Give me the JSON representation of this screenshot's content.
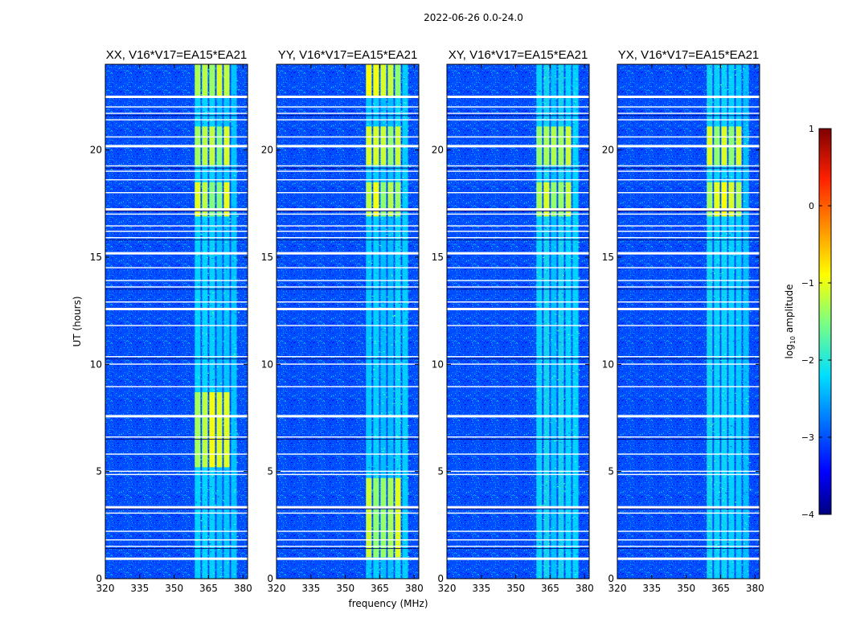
{
  "figure_title": "2022-06-26 0.0-24.0",
  "chart_data": {
    "type": "heatmap",
    "xlabel": "frequency (MHz)",
    "ylabel": "UT (hours)",
    "xlim": [
      320,
      382
    ],
    "ylim": [
      0,
      24
    ],
    "xticks": [
      320,
      335,
      350,
      365,
      380
    ],
    "yticks": [
      0,
      5,
      10,
      15,
      20
    ],
    "panels": [
      {
        "title": "XX, V16*V17=EA15*EA21",
        "rfi_band_mhz": [
          359,
          378
        ],
        "rfi_peak_intervals_hours": [
          [
            5.2,
            8.7
          ],
          [
            16.9,
            18.5
          ],
          [
            19.3,
            21.1
          ],
          [
            22.5,
            24.0
          ]
        ]
      },
      {
        "title": "YY, V16*V17=EA15*EA21",
        "rfi_band_mhz": [
          359,
          378
        ],
        "rfi_peak_intervals_hours": [
          [
            1.0,
            4.7
          ],
          [
            16.9,
            18.5
          ],
          [
            19.3,
            21.1
          ],
          [
            22.5,
            24.0
          ]
        ]
      },
      {
        "title": "XY, V16*V17=EA15*EA21",
        "rfi_band_mhz": [
          359,
          378
        ],
        "rfi_peak_intervals_hours": [
          [
            16.9,
            18.5
          ],
          [
            19.3,
            21.1
          ]
        ]
      },
      {
        "title": "YX, V16*V17=EA15*EA21",
        "rfi_band_mhz": [
          359,
          378
        ],
        "rfi_peak_intervals_hours": [
          [
            16.9,
            18.5
          ],
          [
            19.3,
            21.1
          ]
        ]
      }
    ],
    "flagged_rows_hours": [
      0.95,
      1.5,
      1.8,
      2.2,
      3.05,
      3.35,
      4.85,
      5.0,
      5.8,
      6.6,
      7.6,
      8.95,
      10.0,
      10.35,
      11.8,
      12.6,
      12.9,
      13.6,
      13.9,
      14.5,
      15.2,
      15.9,
      16.2,
      16.45,
      17.0,
      17.25,
      18.0,
      18.6,
      19.0,
      19.25,
      20.2,
      20.6,
      21.4,
      21.7,
      22.0,
      22.5
    ],
    "colorbar": {
      "label": "log",
      "label_sub": "10",
      "label_rest": " amplitude",
      "range": [
        -4,
        1
      ],
      "ticks": [
        "1",
        "0",
        "−1",
        "−2",
        "−3",
        "−4"
      ],
      "colormap": "jet"
    }
  }
}
